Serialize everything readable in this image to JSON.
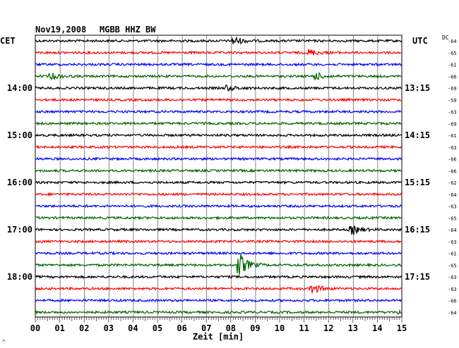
{
  "header": {
    "date": "Nov19,2008",
    "station": "MGBB HHZ BW",
    "left_tz": "CET",
    "right_tz": "UTC",
    "dc_label": "DC",
    "corner_mark": "^"
  },
  "chart_data": {
    "type": "line",
    "title": "",
    "xlabel": "Zeit [min]",
    "xlim": [
      0,
      15
    ],
    "x_ticks": [
      "00",
      "01",
      "02",
      "03",
      "04",
      "05",
      "06",
      "07",
      "08",
      "09",
      "10",
      "11",
      "12",
      "13",
      "14",
      "15"
    ],
    "hour_labels_left": [
      "14:00",
      "15:00",
      "16:00",
      "17:00",
      "18:00"
    ],
    "hour_labels_right": [
      "13:15",
      "14:15",
      "15:15",
      "16:15",
      "17:15"
    ],
    "trace_colors": [
      "#000000",
      "#ff0000",
      "#0000ff",
      "#006400"
    ],
    "grid": true,
    "dc_offsets": [
      "64",
      "65",
      "61",
      "66",
      "69",
      "59",
      "63",
      "69",
      "61",
      "63",
      "66",
      "66",
      "62",
      "64",
      "63",
      "65",
      "64",
      "63",
      "61",
      "65",
      "63",
      "63",
      "66",
      "64"
    ],
    "events": [
      {
        "trace": 0,
        "minute": 8.1,
        "amplitude": 2.2
      },
      {
        "trace": 1,
        "minute": 11.2,
        "amplitude": 1.6
      },
      {
        "trace": 3,
        "minute": 0.6,
        "amplitude": 1.6
      },
      {
        "trace": 3,
        "minute": 11.4,
        "amplitude": 2.0
      },
      {
        "trace": 4,
        "minute": 7.8,
        "amplitude": 1.4
      },
      {
        "trace": 16,
        "minute": 12.9,
        "amplitude": 2.4
      },
      {
        "trace": 19,
        "minute": 8.3,
        "amplitude": 6.5
      },
      {
        "trace": 21,
        "minute": 11.3,
        "amplitude": 2.6
      },
      {
        "trace": 23,
        "minute": 14.9,
        "amplitude": 1.8
      }
    ]
  }
}
